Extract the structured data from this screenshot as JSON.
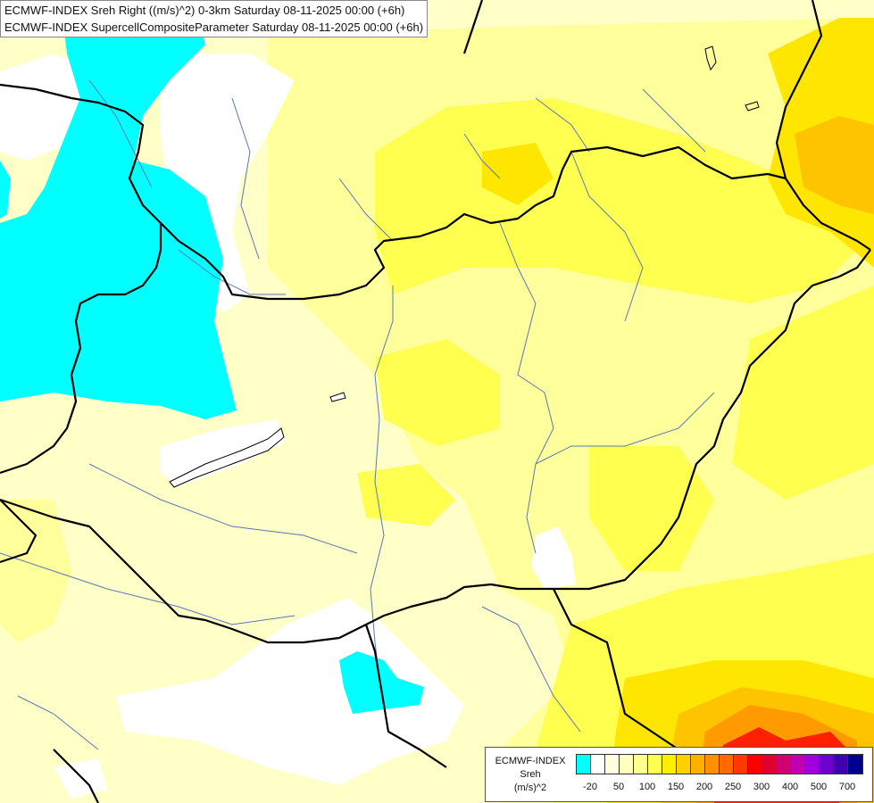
{
  "titles": {
    "line1": "ECMWF-INDEX Sreh Right ((m/s)^2) 0-3km Saturday 08-11-2025 00:00 (+6h)",
    "line2": "ECMWF-INDEX SupercellCompositeParameter Saturday 08-11-2025 00:00 (+6h)"
  },
  "legend": {
    "title1": "ECMWF-INDEX",
    "title2": "Sreh",
    "title3": "(m/s)^2",
    "colors": [
      "#00ffff",
      "#ffffff",
      "#ffffe0",
      "#ffffc0",
      "#ffff90",
      "#ffff50",
      "#ffee00",
      "#ffd000",
      "#ffb000",
      "#ff9000",
      "#ff6a00",
      "#ff3800",
      "#ff0000",
      "#e00030",
      "#d00070",
      "#c000b0",
      "#a000e0",
      "#7000d0",
      "#4000b0",
      "#000090"
    ],
    "ticks": [
      "-20",
      "50",
      "100",
      "150",
      "200",
      "250",
      "300",
      "400",
      "500",
      "700"
    ]
  },
  "map": {
    "colors": {
      "cyan": "#00ffff",
      "white": "#ffffff",
      "pale": "#ffffc8",
      "light_yellow": "#ffff9c",
      "yellow": "#ffff50",
      "gold": "#ffe600",
      "orange": "#ffc400",
      "dark_orange": "#ff9a00",
      "red": "#ff2000",
      "border": "#000000",
      "river": "#5a78b4"
    }
  }
}
